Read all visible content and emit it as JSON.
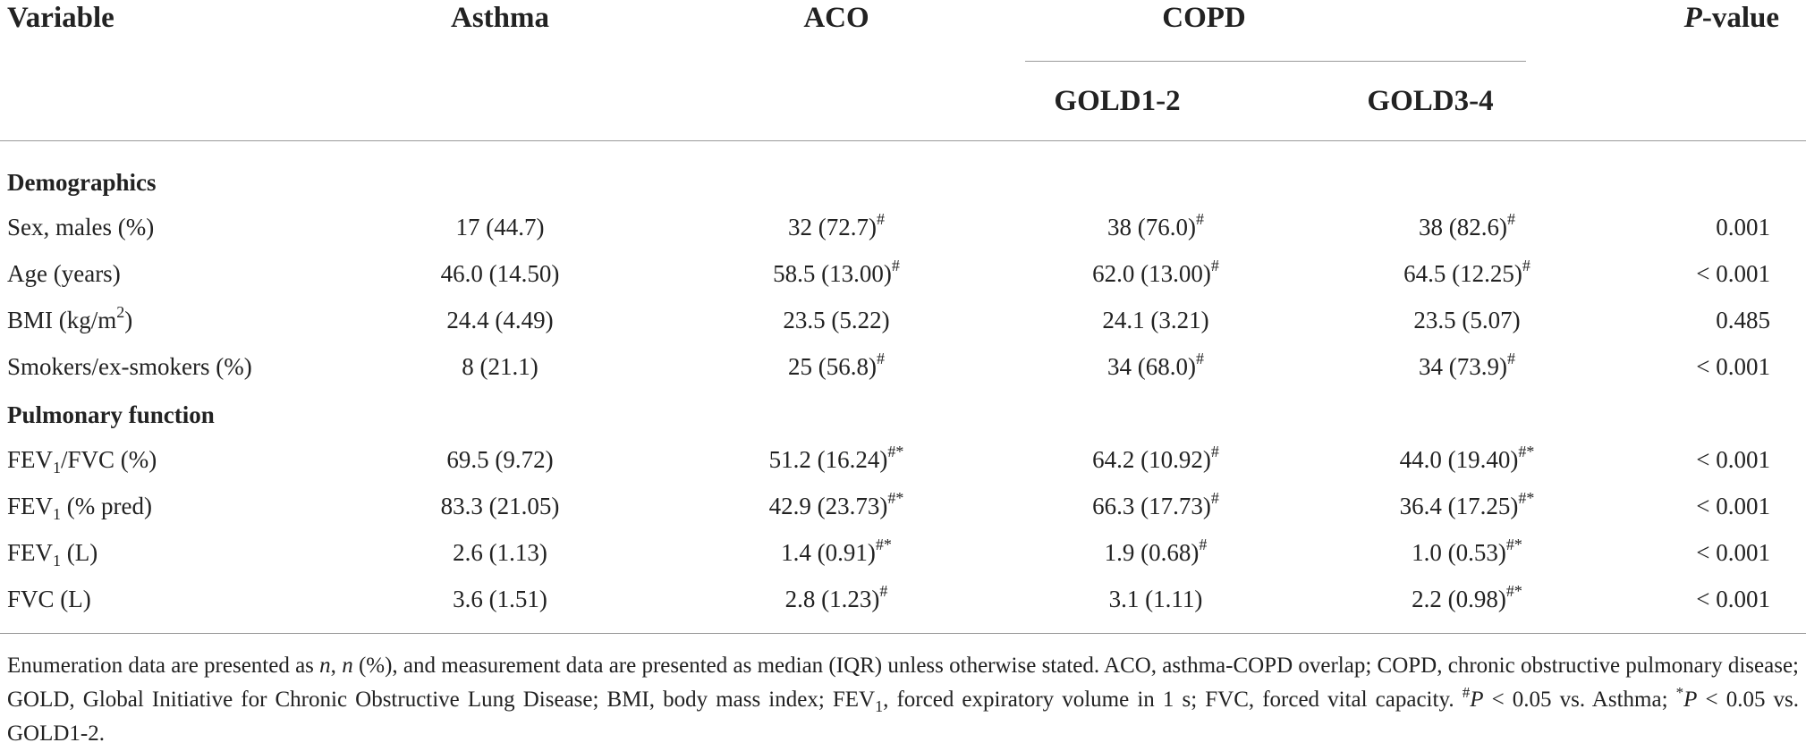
{
  "header": {
    "variable": "Variable",
    "asthma": "Asthma",
    "aco": "ACO",
    "copd": "COPD",
    "gold12": "GOLD1-2",
    "gold34": "GOLD3-4",
    "p_value": "P",
    "p_value_suffix": "-value"
  },
  "sections": {
    "demographics": "Demographics",
    "pulmonary": "Pulmonary function"
  },
  "rows": [
    {
      "label": "Sex, males (%)",
      "asthma": "17 (44.7)",
      "aco": "32 (72.7)",
      "aco_mark": "#",
      "g12": "38 (76.0)",
      "g12_mark": "#",
      "g34": "38 (82.6)",
      "g34_mark": "#",
      "p": "0.001"
    },
    {
      "label": "Age (years)",
      "asthma": "46.0 (14.50)",
      "aco": "58.5 (13.00)",
      "aco_mark": "#",
      "g12": "62.0 (13.00)",
      "g12_mark": "#",
      "g34": "64.5 (12.25)",
      "g34_mark": "#",
      "p": "< 0.001"
    },
    {
      "label_pre": "BMI (kg/m",
      "label_sup": "2",
      "label_post": ")",
      "asthma": "24.4 (4.49)",
      "aco": "23.5 (5.22)",
      "g12": "24.1 (3.21)",
      "g34": "23.5 (5.07)",
      "p": "0.485"
    },
    {
      "label": "Smokers/ex-smokers (%)",
      "asthma": "8 (21.1)",
      "aco": "25 (56.8)",
      "aco_mark": "#",
      "g12": "34 (68.0)",
      "g12_mark": "#",
      "g34": "34 (73.9)",
      "g34_mark": "#",
      "p": "< 0.001"
    },
    {
      "label_pre": "FEV",
      "label_sub": "1",
      "label_post": "/FVC (%)",
      "asthma": "69.5 (9.72)",
      "aco": "51.2 (16.24)",
      "aco_mark": "#*",
      "g12": "64.2 (10.92)",
      "g12_mark": "#",
      "g34": "44.0 (19.40)",
      "g34_mark": "#*",
      "p": "< 0.001"
    },
    {
      "label_pre": "FEV",
      "label_sub": "1",
      "label_post": " (% pred)",
      "asthma": "83.3 (21.05)",
      "aco": "42.9 (23.73)",
      "aco_mark": "#*",
      "g12": "66.3 (17.73)",
      "g12_mark": "#",
      "g34": "36.4 (17.25)",
      "g34_mark": "#*",
      "p": "< 0.001"
    },
    {
      "label_pre": "FEV",
      "label_sub": "1",
      "label_post": " (L)",
      "asthma": "2.6 (1.13)",
      "aco": "1.4 (0.91)",
      "aco_mark": "#*",
      "g12": "1.9 (0.68)",
      "g12_mark": "#",
      "g34": "1.0 (0.53)",
      "g34_mark": "#*",
      "p": "< 0.001"
    },
    {
      "label": "FVC (L)",
      "asthma": "3.6 (1.51)",
      "aco": "2.8 (1.23)",
      "aco_mark": "#",
      "g12": "3.1 (1.11)",
      "g34": "2.2 (0.98)",
      "g34_mark": "#*",
      "p": "< 0.001"
    }
  ],
  "footnote": {
    "p1": "Enumeration data are presented as ",
    "n1": "n",
    "p2": ", ",
    "n2": "n",
    "p3": " (%), and measurement data are presented as median (IQR) unless otherwise stated. ACO, asthma-COPD overlap; COPD, chronic obstructive pulmonary disease; GOLD, Global Initiative for Chronic Obstructive Lung Disease; BMI, body mass index; FEV",
    "sub1": "1",
    "p4": ", forced expiratory volume in 1 s; FVC, forced vital capacity. ",
    "hash": "#",
    "P1": "P",
    "p5": " < 0.05 vs. Asthma; ",
    "star": "*",
    "P2": "P",
    "p6": " < 0.05 vs. GOLD1-2."
  }
}
